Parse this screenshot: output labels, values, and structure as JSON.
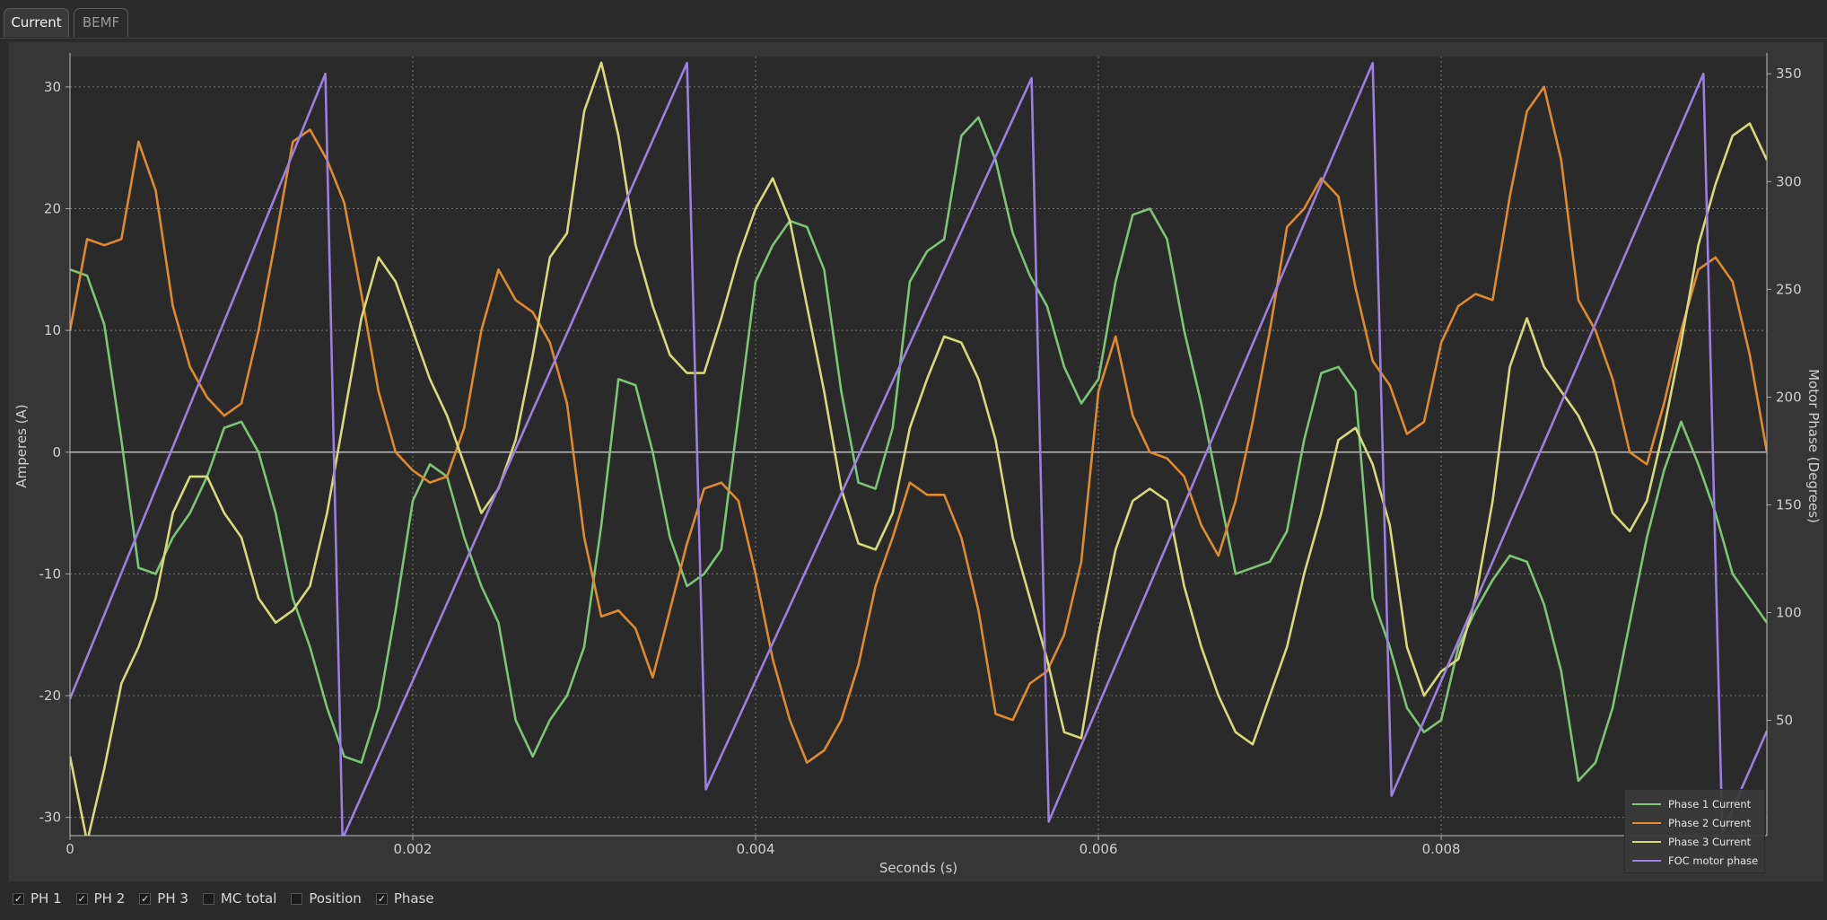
{
  "tabs": [
    {
      "label": "Current",
      "active": true
    },
    {
      "label": "BEMF",
      "active": false
    }
  ],
  "colors": {
    "ph1": "#7cc576",
    "ph2": "#e08a2e",
    "ph3": "#d8d97a",
    "phase": "#9c7fe0"
  },
  "checkboxes": [
    {
      "label": "PH 1",
      "checked": true
    },
    {
      "label": "PH 2",
      "checked": true
    },
    {
      "label": "PH 3",
      "checked": true
    },
    {
      "label": "MC total",
      "checked": false
    },
    {
      "label": "Position",
      "checked": false
    },
    {
      "label": "Phase",
      "checked": true
    }
  ],
  "chart_data": {
    "type": "line",
    "xlabel": "Seconds (s)",
    "ylabel": "Amperes (A)",
    "y2label": "Motor Phase (Degrees)",
    "xlim": [
      0,
      0.0099
    ],
    "ylim": [
      -31.5,
      32.5
    ],
    "y2lim": [
      -3.5,
      358
    ],
    "xticks": [
      "0",
      "0.002",
      "0.004",
      "0.006",
      "0.008"
    ],
    "xtick_values": [
      0,
      0.002,
      0.004,
      0.006,
      0.008
    ],
    "yticks": [
      "30",
      "20",
      "10",
      "0",
      "-10",
      "-20",
      "-30"
    ],
    "ytick_values": [
      30,
      20,
      10,
      0,
      -10,
      -20,
      -30
    ],
    "y2ticks": [
      "350",
      "300",
      "250",
      "200",
      "150",
      "100",
      "50"
    ],
    "y2tick_values": [
      350,
      300,
      250,
      200,
      150,
      100,
      50
    ],
    "grid": true,
    "legend_position": "bottom-right",
    "series": [
      {
        "name": "Phase 1 Current",
        "color_key": "ph1",
        "axis": "left",
        "x": [
          0,
          0.0001,
          0.0002,
          0.0003,
          0.0004,
          0.0005,
          0.0006,
          0.0007,
          0.0008,
          0.0009,
          0.001,
          0.0011,
          0.0012,
          0.0013,
          0.0014,
          0.0015,
          0.0016,
          0.0017,
          0.0018,
          0.0019,
          0.002,
          0.0021,
          0.0022,
          0.0023,
          0.0024,
          0.0025,
          0.0026,
          0.0027,
          0.0028,
          0.0029,
          0.003,
          0.0031,
          0.0032,
          0.0033,
          0.0034,
          0.0035,
          0.0036,
          0.0037,
          0.0038,
          0.0039,
          0.004,
          0.0041,
          0.0042,
          0.0043,
          0.0044,
          0.0045,
          0.0046,
          0.0047,
          0.0048,
          0.0049,
          0.005,
          0.0051,
          0.0052,
          0.0053,
          0.0054,
          0.0055,
          0.0056,
          0.0057,
          0.0058,
          0.0059,
          0.006,
          0.0061,
          0.0062,
          0.0063,
          0.0064,
          0.0065,
          0.0066,
          0.0067,
          0.0068,
          0.0069,
          0.007,
          0.0071,
          0.0072,
          0.0073,
          0.0074,
          0.0075,
          0.0076,
          0.0077,
          0.0078,
          0.0079,
          0.008,
          0.0081,
          0.0082,
          0.0083,
          0.0084,
          0.0085,
          0.0086,
          0.0087,
          0.0088,
          0.0089,
          0.009,
          0.0091,
          0.0092,
          0.0093,
          0.0094,
          0.0095,
          0.0096,
          0.0097,
          0.0098,
          0.0099
        ],
        "y": [
          15,
          14.5,
          10.5,
          1,
          -9.5,
          -10,
          -7,
          -5,
          -2,
          2,
          2.5,
          0,
          -5,
          -12,
          -16,
          -21,
          -25,
          -25.5,
          -21,
          -13,
          -4,
          -1,
          -2,
          -7,
          -11,
          -14,
          -22,
          -25,
          -22,
          -20,
          -16,
          -6,
          6,
          5.5,
          0,
          -7,
          -11,
          -10,
          -8,
          3,
          14,
          17,
          19,
          18.5,
          15,
          5,
          -2.5,
          -3,
          2,
          14,
          16.5,
          17.5,
          26,
          27.5,
          24,
          18,
          14.5,
          12,
          7,
          4,
          6,
          14,
          19.5,
          20,
          17.5,
          10,
          4,
          -3,
          -10,
          -9.5,
          -9,
          -6.5,
          1,
          6.5,
          7,
          5,
          -12,
          -16,
          -21,
          -23,
          -22,
          -16,
          -13,
          -10.5,
          -8.5,
          -9,
          -12.5,
          -18,
          -27,
          -25.5,
          -21,
          -14,
          -7,
          -1.5,
          2.5,
          -1,
          -5,
          -10,
          -12,
          -14
        ]
      },
      {
        "name": "Phase 2 Current",
        "color_key": "ph2",
        "axis": "left",
        "x": [
          0,
          0.0001,
          0.0002,
          0.0003,
          0.0004,
          0.0005,
          0.0006,
          0.0007,
          0.0008,
          0.0009,
          0.001,
          0.0011,
          0.0012,
          0.0013,
          0.0014,
          0.0015,
          0.0016,
          0.0017,
          0.0018,
          0.0019,
          0.002,
          0.0021,
          0.0022,
          0.0023,
          0.0024,
          0.0025,
          0.0026,
          0.0027,
          0.0028,
          0.0029,
          0.003,
          0.0031,
          0.0032,
          0.0033,
          0.0034,
          0.0035,
          0.0036,
          0.0037,
          0.0038,
          0.0039,
          0.004,
          0.0041,
          0.0042,
          0.0043,
          0.0044,
          0.0045,
          0.0046,
          0.0047,
          0.0048,
          0.0049,
          0.005,
          0.0051,
          0.0052,
          0.0053,
          0.0054,
          0.0055,
          0.0056,
          0.0057,
          0.0058,
          0.0059,
          0.006,
          0.0061,
          0.0062,
          0.0063,
          0.0064,
          0.0065,
          0.0066,
          0.0067,
          0.0068,
          0.0069,
          0.007,
          0.0071,
          0.0072,
          0.0073,
          0.0074,
          0.0075,
          0.0076,
          0.0077,
          0.0078,
          0.0079,
          0.008,
          0.0081,
          0.0082,
          0.0083,
          0.0084,
          0.0085,
          0.0086,
          0.0087,
          0.0088,
          0.0089,
          0.009,
          0.0091,
          0.0092,
          0.0093,
          0.0094,
          0.0095,
          0.0096,
          0.0097,
          0.0098,
          0.0099
        ],
        "y": [
          10,
          17.5,
          17,
          17.5,
          25.5,
          21.5,
          12,
          7,
          4.5,
          3,
          4,
          10,
          17.5,
          25.5,
          26.5,
          24,
          20.5,
          13,
          5,
          0,
          -1.5,
          -2.5,
          -2,
          2,
          10,
          15,
          12.5,
          11.5,
          9,
          4,
          -7,
          -13.5,
          -13,
          -14.5,
          -18.5,
          -13,
          -7.5,
          -3,
          -2.5,
          -4,
          -10,
          -17,
          -22,
          -25.5,
          -24.5,
          -22,
          -17.5,
          -11,
          -7,
          -2.5,
          -3.5,
          -3.5,
          -7,
          -13,
          -21.5,
          -22,
          -19,
          -18,
          -15,
          -9,
          5,
          9.5,
          3,
          0,
          -0.5,
          -2,
          -6,
          -8.5,
          -4,
          2.5,
          10,
          18.5,
          20,
          22.5,
          21,
          13.5,
          7.5,
          5.5,
          1.5,
          2.5,
          9,
          12,
          13,
          12.5,
          21,
          28,
          30,
          24,
          12.5,
          10,
          6,
          0,
          -1,
          4,
          10,
          15,
          16,
          14,
          8,
          0
        ]
      },
      {
        "name": "Phase 3 Current",
        "color_key": "ph3",
        "axis": "left",
        "x": [
          0,
          0.0001,
          0.0002,
          0.0003,
          0.0004,
          0.0005,
          0.0006,
          0.0007,
          0.0008,
          0.0009,
          0.001,
          0.0011,
          0.0012,
          0.0013,
          0.0014,
          0.0015,
          0.0016,
          0.0017,
          0.0018,
          0.0019,
          0.002,
          0.0021,
          0.0022,
          0.0023,
          0.0024,
          0.0025,
          0.0026,
          0.0027,
          0.0028,
          0.0029,
          0.003,
          0.0031,
          0.0032,
          0.0033,
          0.0034,
          0.0035,
          0.0036,
          0.0037,
          0.0038,
          0.0039,
          0.004,
          0.0041,
          0.0042,
          0.0043,
          0.0044,
          0.0045,
          0.0046,
          0.0047,
          0.0048,
          0.0049,
          0.005,
          0.0051,
          0.0052,
          0.0053,
          0.0054,
          0.0055,
          0.0056,
          0.0057,
          0.0058,
          0.0059,
          0.006,
          0.0061,
          0.0062,
          0.0063,
          0.0064,
          0.0065,
          0.0066,
          0.0067,
          0.0068,
          0.0069,
          0.007,
          0.0071,
          0.0072,
          0.0073,
          0.0074,
          0.0075,
          0.0076,
          0.0077,
          0.0078,
          0.0079,
          0.008,
          0.0081,
          0.0082,
          0.0083,
          0.0084,
          0.0085,
          0.0086,
          0.0087,
          0.0088,
          0.0089,
          0.009,
          0.0091,
          0.0092,
          0.0093,
          0.0094,
          0.0095,
          0.0096,
          0.0097,
          0.0098,
          0.0099
        ],
        "y": [
          -25,
          -32,
          -26,
          -19,
          -16,
          -12,
          -5,
          -2,
          -2,
          -5,
          -7,
          -12,
          -14,
          -13,
          -11,
          -5,
          3,
          11,
          16,
          14,
          10,
          6,
          3,
          -1,
          -5,
          -3,
          1,
          8,
          16,
          18,
          28,
          32,
          26,
          17,
          12,
          8,
          6.5,
          6.5,
          11,
          16,
          20,
          22.5,
          19,
          12,
          5,
          -3,
          -7.5,
          -8,
          -5,
          2,
          6,
          9.5,
          9,
          6,
          1,
          -7,
          -12,
          -17,
          -23,
          -23.5,
          -15,
          -8,
          -4,
          -3,
          -4,
          -11,
          -16,
          -20,
          -23,
          -24,
          -20,
          -16,
          -10,
          -5,
          1,
          2,
          -1,
          -6,
          -16,
          -20,
          -18,
          -17,
          -12,
          -4,
          7,
          11,
          7,
          5,
          3,
          0,
          -5,
          -6.5,
          -4,
          2,
          9,
          17,
          22,
          26,
          27,
          24
        ]
      },
      {
        "name": "FOC motor phase",
        "color_key": "phase",
        "axis": "right",
        "x": [
          0,
          0.00149,
          0.00159,
          0.0036,
          0.00371,
          0.00561,
          0.00571,
          0.0076,
          0.00771,
          0.00953,
          0.00964,
          0.0099
        ],
        "y": [
          60,
          350,
          -5,
          355,
          18,
          348,
          3,
          355,
          15,
          350,
          -2,
          45
        ]
      }
    ]
  }
}
